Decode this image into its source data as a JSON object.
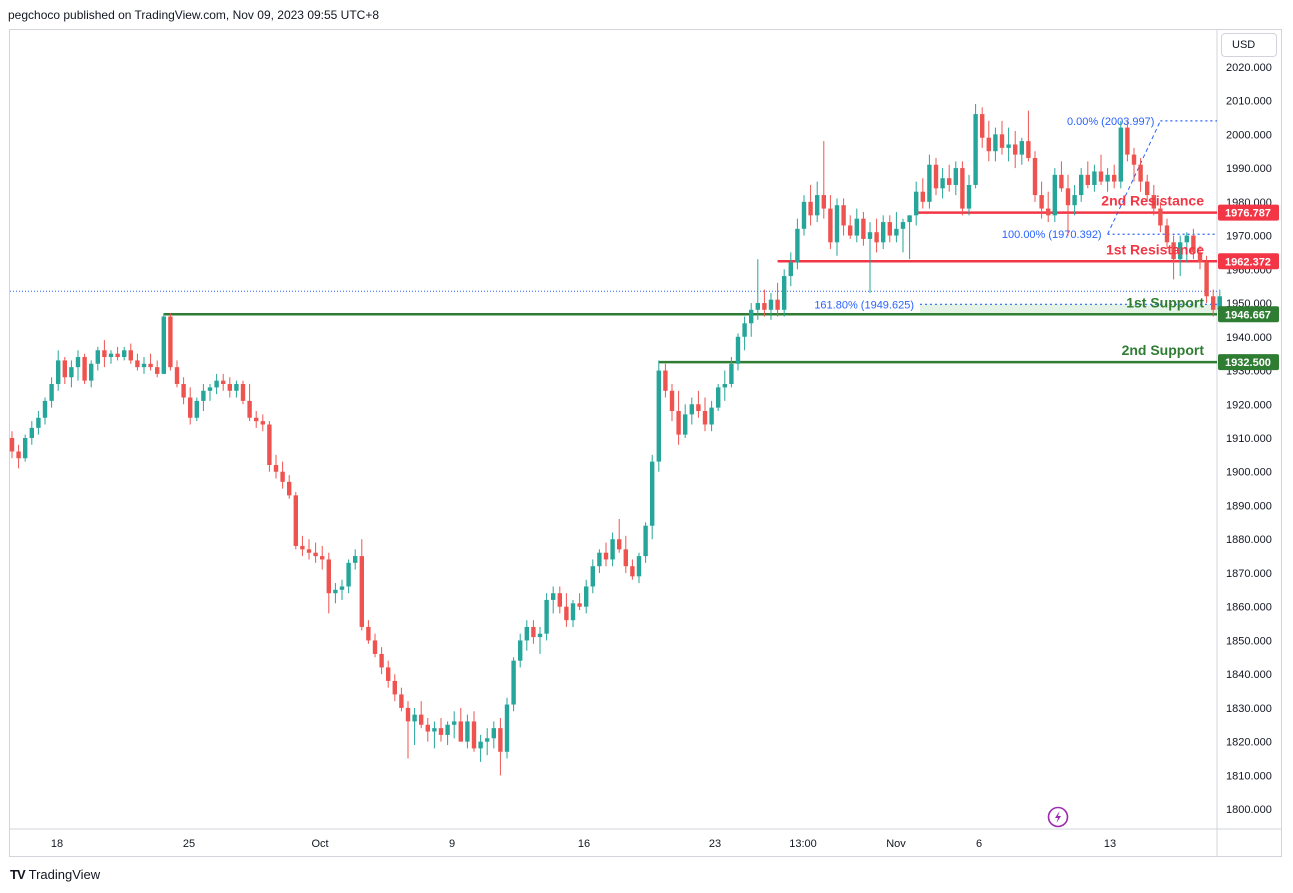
{
  "header": {
    "publisher": "pegchoco published on TradingView.com, Nov 09, 2023 09:55 UTC+8"
  },
  "currency": "USD",
  "footer": {
    "brand": "TradingView"
  },
  "icons": {
    "flash": "lightning-icon",
    "logo": "tradingview-logo-icon"
  },
  "colors": {
    "up": "#26a69a",
    "down": "#ef5350",
    "resistance": "#f23645",
    "support": "#2e7d32",
    "fib": "#2962ff"
  },
  "chart_data": {
    "type": "candlestick",
    "symbol_currency": "USD",
    "ylim": [
      1795,
      2025
    ],
    "y_ticks": [
      1800,
      1810,
      1820,
      1830,
      1840,
      1850,
      1860,
      1870,
      1880,
      1890,
      1900,
      1910,
      1920,
      1930,
      1940,
      1950,
      1960,
      1970,
      1980,
      1990,
      2000,
      2010,
      2020
    ],
    "x_ticks": [
      "18",
      "25",
      "Oct",
      "9",
      "16",
      "23",
      "13:00",
      "Nov",
      "6",
      "13"
    ],
    "candles": [
      [
        1910,
        1912,
        1904,
        1906
      ],
      [
        1906,
        1908,
        1901,
        1904
      ],
      [
        1904,
        1911,
        1903,
        1910
      ],
      [
        1910,
        1915,
        1908,
        1913
      ],
      [
        1913,
        1918,
        1911,
        1916
      ],
      [
        1916,
        1922,
        1914,
        1921
      ],
      [
        1921,
        1928,
        1919,
        1926
      ],
      [
        1926,
        1936,
        1924,
        1933
      ],
      [
        1933,
        1934,
        1926,
        1928
      ],
      [
        1928,
        1933,
        1925,
        1931
      ],
      [
        1931,
        1936,
        1927,
        1934
      ],
      [
        1934,
        1935,
        1926,
        1927
      ],
      [
        1927,
        1933,
        1925,
        1932
      ],
      [
        1932,
        1937,
        1930,
        1936
      ],
      [
        1936,
        1939,
        1931,
        1934
      ],
      [
        1934,
        1936,
        1932,
        1935
      ],
      [
        1935,
        1937,
        1933,
        1934
      ],
      [
        1934,
        1937,
        1933,
        1936
      ],
      [
        1936,
        1938,
        1932,
        1933
      ],
      [
        1933,
        1935,
        1930,
        1931
      ],
      [
        1931,
        1934,
        1929,
        1932
      ],
      [
        1932,
        1935,
        1930,
        1931
      ],
      [
        1931,
        1933,
        1928,
        1929
      ],
      [
        1929,
        1947,
        1929,
        1946
      ],
      [
        1946,
        1947,
        1930,
        1931
      ],
      [
        1931,
        1933,
        1925,
        1926
      ],
      [
        1926,
        1928,
        1920,
        1922
      ],
      [
        1922,
        1925,
        1914,
        1916
      ],
      [
        1916,
        1922,
        1915,
        1921
      ],
      [
        1921,
        1926,
        1918,
        1924
      ],
      [
        1924,
        1926,
        1921,
        1925
      ],
      [
        1925,
        1929,
        1923,
        1927
      ],
      [
        1927,
        1929,
        1924,
        1926
      ],
      [
        1926,
        1928,
        1922,
        1924
      ],
      [
        1924,
        1927,
        1922,
        1926
      ],
      [
        1926,
        1927,
        1920,
        1921
      ],
      [
        1921,
        1926,
        1915,
        1916
      ],
      [
        1916,
        1918,
        1913,
        1915
      ],
      [
        1915,
        1917,
        1912,
        1914
      ],
      [
        1914,
        1915,
        1900,
        1902
      ],
      [
        1902,
        1905,
        1898,
        1900
      ],
      [
        1900,
        1903,
        1895,
        1897
      ],
      [
        1897,
        1899,
        1892,
        1893
      ],
      [
        1893,
        1894,
        1877,
        1878
      ],
      [
        1878,
        1881,
        1875,
        1877
      ],
      [
        1877,
        1880,
        1874,
        1876
      ],
      [
        1876,
        1879,
        1873,
        1875
      ],
      [
        1875,
        1878,
        1871,
        1874
      ],
      [
        1874,
        1876,
        1858,
        1864
      ],
      [
        1864,
        1867,
        1861,
        1865
      ],
      [
        1865,
        1868,
        1862,
        1866
      ],
      [
        1866,
        1874,
        1864,
        1873
      ],
      [
        1873,
        1877,
        1871,
        1875
      ],
      [
        1875,
        1880,
        1853,
        1854
      ],
      [
        1854,
        1856,
        1849,
        1850
      ],
      [
        1850,
        1852,
        1845,
        1846
      ],
      [
        1846,
        1848,
        1840,
        1842
      ],
      [
        1842,
        1844,
        1836,
        1838
      ],
      [
        1838,
        1840,
        1832,
        1834
      ],
      [
        1834,
        1836,
        1829,
        1830
      ],
      [
        1830,
        1832,
        1815,
        1826
      ],
      [
        1826,
        1830,
        1819,
        1828
      ],
      [
        1828,
        1832,
        1824,
        1825
      ],
      [
        1825,
        1827,
        1820,
        1823
      ],
      [
        1823,
        1826,
        1818,
        1824
      ],
      [
        1824,
        1827,
        1820,
        1822
      ],
      [
        1822,
        1826,
        1819,
        1825
      ],
      [
        1825,
        1829,
        1821,
        1826
      ],
      [
        1826,
        1830,
        1822,
        1820
      ],
      [
        1820,
        1828,
        1818,
        1826
      ],
      [
        1826,
        1829,
        1817,
        1818
      ],
      [
        1818,
        1822,
        1814,
        1820
      ],
      [
        1820,
        1824,
        1816,
        1821
      ],
      [
        1821,
        1826,
        1818,
        1824
      ],
      [
        1824,
        1827,
        1810,
        1817
      ],
      [
        1817,
        1833,
        1815,
        1831
      ],
      [
        1831,
        1845,
        1829,
        1844
      ],
      [
        1844,
        1852,
        1842,
        1850
      ],
      [
        1850,
        1856,
        1847,
        1854
      ],
      [
        1854,
        1856,
        1849,
        1851
      ],
      [
        1851,
        1854,
        1846,
        1852
      ],
      [
        1852,
        1864,
        1850,
        1862
      ],
      [
        1862,
        1866,
        1858,
        1864
      ],
      [
        1864,
        1866,
        1858,
        1860
      ],
      [
        1860,
        1864,
        1854,
        1856
      ],
      [
        1856,
        1862,
        1854,
        1861
      ],
      [
        1861,
        1864,
        1859,
        1860
      ],
      [
        1860,
        1868,
        1858,
        1866
      ],
      [
        1866,
        1874,
        1864,
        1872
      ],
      [
        1872,
        1877,
        1870,
        1876
      ],
      [
        1876,
        1879,
        1872,
        1874
      ],
      [
        1874,
        1882,
        1872,
        1880
      ],
      [
        1880,
        1886,
        1876,
        1877
      ],
      [
        1877,
        1881,
        1870,
        1872
      ],
      [
        1872,
        1874,
        1868,
        1869
      ],
      [
        1869,
        1876,
        1867,
        1875
      ],
      [
        1875,
        1885,
        1873,
        1884
      ],
      [
        1884,
        1905,
        1880,
        1903
      ],
      [
        1903,
        1933,
        1900,
        1930
      ],
      [
        1930,
        1932,
        1922,
        1924
      ],
      [
        1924,
        1926,
        1915,
        1918
      ],
      [
        1918,
        1924,
        1908,
        1911
      ],
      [
        1911,
        1920,
        1910,
        1917
      ],
      [
        1917,
        1922,
        1914,
        1920
      ],
      [
        1920,
        1924,
        1916,
        1918
      ],
      [
        1918,
        1922,
        1912,
        1914
      ],
      [
        1914,
        1921,
        1912,
        1919
      ],
      [
        1919,
        1926,
        1918,
        1925
      ],
      [
        1925,
        1930,
        1921,
        1926
      ],
      [
        1926,
        1934,
        1925,
        1932
      ],
      [
        1932,
        1941,
        1930,
        1940
      ],
      [
        1940,
        1946,
        1936,
        1944
      ],
      [
        1944,
        1950,
        1940,
        1948
      ],
      [
        1948,
        1963,
        1945,
        1950
      ],
      [
        1950,
        1954,
        1946,
        1948
      ],
      [
        1948,
        1953,
        1945,
        1951
      ],
      [
        1951,
        1956,
        1946,
        1948
      ],
      [
        1948,
        1960,
        1946,
        1958
      ],
      [
        1958,
        1965,
        1955,
        1962
      ],
      [
        1962,
        1975,
        1960,
        1972
      ],
      [
        1972,
        1982,
        1970,
        1980
      ],
      [
        1980,
        1985,
        1973,
        1976
      ],
      [
        1976,
        1986,
        1974,
        1982
      ],
      [
        1982,
        1998,
        1975,
        1978
      ],
      [
        1978,
        1982,
        1966,
        1968
      ],
      [
        1968,
        1981,
        1964,
        1979
      ],
      [
        1979,
        1981,
        1970,
        1973
      ],
      [
        1973,
        1976,
        1969,
        1970
      ],
      [
        1970,
        1978,
        1968,
        1975
      ],
      [
        1975,
        1977,
        1967,
        1969
      ],
      [
        1969,
        1974,
        1953,
        1971
      ],
      [
        1971,
        1975,
        1965,
        1968
      ],
      [
        1968,
        1976,
        1966,
        1974
      ],
      [
        1974,
        1976,
        1968,
        1970
      ],
      [
        1970,
        1977,
        1968,
        1972
      ],
      [
        1972,
        1975,
        1965,
        1974
      ],
      [
        1974,
        1976,
        1963,
        1976
      ],
      [
        1976,
        1986,
        1973,
        1983
      ],
      [
        1983,
        1987,
        1978,
        1980
      ],
      [
        1980,
        1994,
        1978,
        1991
      ],
      [
        1991,
        1993,
        1982,
        1984
      ],
      [
        1984,
        1990,
        1981,
        1987
      ],
      [
        1987,
        1991,
        1983,
        1985
      ],
      [
        1985,
        1992,
        1982,
        1990
      ],
      [
        1990,
        1992,
        1976,
        1978
      ],
      [
        1978,
        1988,
        1976,
        1985
      ],
      [
        1985,
        2009,
        1984,
        2006
      ],
      [
        2006,
        2008,
        1996,
        1999
      ],
      [
        1999,
        2004,
        1992,
        1995
      ],
      [
        1995,
        2002,
        1992,
        2000
      ],
      [
        2000,
        2004,
        1994,
        1996
      ],
      [
        1996,
        2002,
        1992,
        1997
      ],
      [
        1997,
        2001,
        1990,
        1994
      ],
      [
        1994,
        1999,
        1991,
        1998
      ],
      [
        1998,
        2007,
        1992,
        1993
      ],
      [
        1993,
        1995,
        1980,
        1982
      ],
      [
        1982,
        1986,
        1975,
        1978
      ],
      [
        1978,
        1983,
        1974,
        1976
      ],
      [
        1976,
        1990,
        1974,
        1988
      ],
      [
        1988,
        1992,
        1983,
        1984
      ],
      [
        1984,
        1988,
        1970,
        1979
      ],
      [
        1979,
        1985,
        1976,
        1982
      ],
      [
        1982,
        1990,
        1980,
        1988
      ],
      [
        1988,
        1992,
        1984,
        1985
      ],
      [
        1985,
        1991,
        1983,
        1989
      ],
      [
        1989,
        1994,
        1985,
        1986
      ],
      [
        1986,
        1990,
        1983,
        1988
      ],
      [
        1988,
        1991,
        1984,
        1986
      ],
      [
        1986,
        2004,
        1984,
        2002
      ],
      [
        2002,
        2004,
        1992,
        1994
      ],
      [
        1994,
        1996,
        1986,
        1991
      ],
      [
        1991,
        1993,
        1983,
        1986
      ],
      [
        1986,
        1988,
        1980,
        1982
      ],
      [
        1982,
        1985,
        1976,
        1978
      ],
      [
        1978,
        1980,
        1971,
        1973
      ],
      [
        1973,
        1975,
        1966,
        1968
      ],
      [
        1968,
        1970,
        1957,
        1963
      ],
      [
        1963,
        1970,
        1958,
        1968
      ],
      [
        1968,
        1971,
        1962,
        1970
      ],
      [
        1970,
        1972,
        1963,
        1965
      ],
      [
        1965,
        1967,
        1960,
        1962
      ],
      [
        1962,
        1964,
        1950,
        1952
      ],
      [
        1952,
        1954,
        1946,
        1948
      ],
      [
        1948,
        1954,
        1947,
        1952
      ]
    ],
    "horizontal_levels": [
      {
        "label": "2nd Resistance",
        "price_label": "1976.787",
        "value": 1976.787,
        "kind": "resistance",
        "x_start_index": 137
      },
      {
        "label": "1st Resistance",
        "price_label": "1962.372",
        "value": 1962.372,
        "kind": "resistance",
        "x_start_index": 116
      },
      {
        "label": "1st Support",
        "price_label": "1946.667",
        "value": 1946.667,
        "kind": "support",
        "x_start_index": 23
      },
      {
        "label": "2nd Support",
        "price_label": "1932.500",
        "value": 1932.5,
        "kind": "support",
        "x_start_index": 98
      }
    ],
    "fib_levels": [
      {
        "label": "0.00% (2003.997)",
        "value": 2003.997
      },
      {
        "label": "100.00% (1970.392)",
        "value": 1970.392
      },
      {
        "label": "161.80% (1949.625)",
        "value": 1949.625
      }
    ],
    "fib_anchor": {
      "from": {
        "index": 166,
        "value": 1970.392
      },
      "to": {
        "index": 174,
        "value": 2003.997
      }
    },
    "last_price_line": 1953.5
  }
}
